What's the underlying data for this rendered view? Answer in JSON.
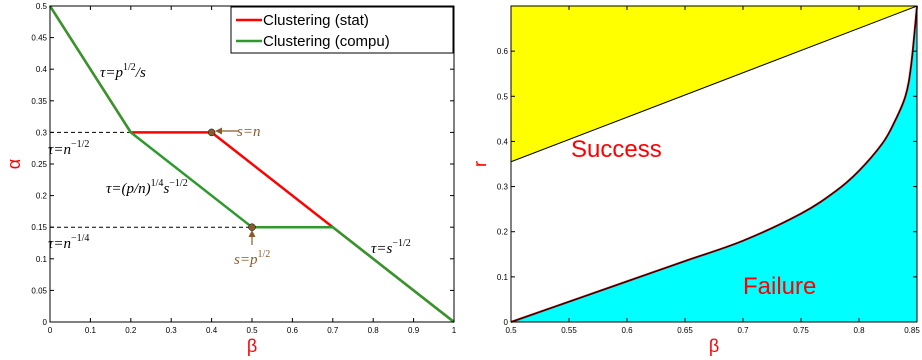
{
  "chart_data": [
    {
      "type": "line",
      "xlabel": "β",
      "ylabel": "α",
      "xlim": [
        0,
        1
      ],
      "ylim": [
        0,
        0.5
      ],
      "xticks": [
        "0",
        "0.1",
        "0.2",
        "0.3",
        "0.4",
        "0.5",
        "0.6",
        "0.7",
        "0.8",
        "0.9",
        "1"
      ],
      "yticks": [
        "0",
        "0.05",
        "0.1",
        "0.15",
        "0.2",
        "0.25",
        "0.3",
        "0.35",
        "0.4",
        "0.45",
        "0.5"
      ],
      "legend_position": "top-right",
      "grid": false,
      "series": [
        {
          "name": "Clustering (stat)",
          "color": "#ff0000",
          "x": [
            0,
            0.2,
            0.4,
            1.0
          ],
          "y": [
            0.5,
            0.3,
            0.3,
            0.0
          ]
        },
        {
          "name": "Clustering (compu)",
          "color": "#2e9a2e",
          "x": [
            0,
            0.2,
            0.5,
            0.7,
            1.0
          ],
          "y": [
            0.5,
            0.3,
            0.15,
            0.15,
            0.0
          ]
        }
      ],
      "dashed_lines": [
        {
          "y": 0.3,
          "x_from": 0,
          "x_to": 0.4
        },
        {
          "y": 0.15,
          "x_from": 0,
          "x_to": 0.5
        }
      ],
      "points": [
        {
          "x": 0.4,
          "y": 0.3,
          "label": "s=n"
        },
        {
          "x": 0.5,
          "y": 0.15,
          "label": "s=p^{1/2}"
        }
      ],
      "annotations": [
        {
          "text": "τ=p^{1/2}/s",
          "x": 0.15,
          "y": 0.415
        },
        {
          "text": "τ=n^{-1/2}",
          "x": 0.06,
          "y": 0.285
        },
        {
          "text": "τ=(p/n)^{1/4}s^{-1/2}",
          "x": 0.29,
          "y": 0.21
        },
        {
          "text": "τ=n^{-1/4}",
          "x": 0.06,
          "y": 0.135
        },
        {
          "text": "τ=s^{-1/2}",
          "x": 0.88,
          "y": 0.12
        }
      ]
    },
    {
      "type": "area",
      "xlabel": "β",
      "ylabel": "r",
      "xlim": [
        0.5,
        0.85
      ],
      "ylim": [
        0,
        0.7
      ],
      "xticks": [
        "0.5",
        "0.55",
        "0.6",
        "0.65",
        "0.7",
        "0.75",
        "0.8",
        "0.85"
      ],
      "yticks": [
        "0",
        "0.1",
        "0.2",
        "0.3",
        "0.4",
        "0.5",
        "0.6"
      ],
      "regions": [
        {
          "label": "Success",
          "color": "#ffff00"
        },
        {
          "label": "Failure",
          "color": "#00ffff"
        }
      ],
      "boundary_upper": {
        "x": [
          0.5,
          0.85
        ],
        "y": [
          0.355,
          0.7
        ]
      },
      "boundary_lower": {
        "x": [
          0.5,
          0.55,
          0.6,
          0.65,
          0.7,
          0.75,
          0.78,
          0.8,
          0.82,
          0.83,
          0.84,
          0.845,
          0.85
        ],
        "y": [
          0.0,
          0.045,
          0.09,
          0.135,
          0.18,
          0.24,
          0.29,
          0.335,
          0.395,
          0.44,
          0.5,
          0.57,
          0.7
        ]
      }
    }
  ],
  "left_chart": {
    "xlabel": "β",
    "ylabel": "α",
    "legend": [
      "Clustering (stat)",
      "Clustering (compu)"
    ],
    "point_labels": [
      "s=n",
      "s=p1/2"
    ]
  },
  "right_chart": {
    "xlabel": "β",
    "ylabel": "r",
    "success_label": "Success",
    "failure_label": "Failure"
  }
}
